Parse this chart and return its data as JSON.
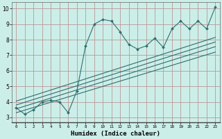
{
  "xlabel": "Humidex (Indice chaleur)",
  "bg_color": "#cceee8",
  "line_color": "#2d6e6e",
  "grid_color": "#b89898",
  "xlim": [
    -0.5,
    23.5
  ],
  "ylim": [
    2.7,
    10.4
  ],
  "xticks": [
    0,
    1,
    2,
    3,
    4,
    5,
    6,
    7,
    8,
    9,
    10,
    11,
    12,
    13,
    14,
    15,
    16,
    17,
    18,
    19,
    20,
    21,
    22,
    23
  ],
  "yticks": [
    3,
    4,
    5,
    6,
    7,
    8,
    9,
    10
  ],
  "main_x": [
    0,
    1,
    2,
    3,
    4,
    5,
    6,
    7,
    8,
    9,
    10,
    11,
    12,
    13,
    14,
    15,
    16,
    17,
    18,
    19,
    20,
    21,
    22,
    23
  ],
  "main_y": [
    3.6,
    3.2,
    3.5,
    4.0,
    4.1,
    4.0,
    3.3,
    4.7,
    7.6,
    9.0,
    9.3,
    9.2,
    8.5,
    7.7,
    7.4,
    7.6,
    8.1,
    7.5,
    8.7,
    9.2,
    8.7,
    9.2,
    8.7,
    10.1
  ],
  "reg_lines": [
    [
      3.3,
      7.2
    ],
    [
      3.55,
      7.55
    ],
    [
      3.8,
      7.85
    ],
    [
      4.05,
      8.15
    ]
  ]
}
